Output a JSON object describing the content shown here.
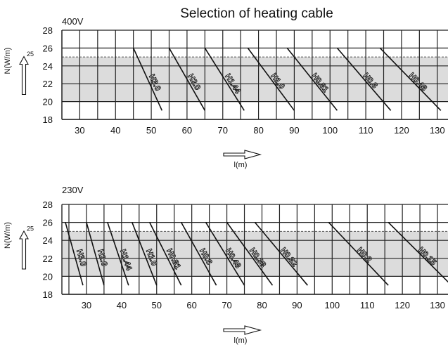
{
  "title": "Selection of heating cable",
  "chart_data": [
    {
      "type": "line",
      "voltage": "400V",
      "xlabel": "l(m)",
      "ylabel": "N(W/m)",
      "xlim": [
        25,
        133
      ],
      "ylim": [
        18,
        28
      ],
      "xticks": [
        30,
        40,
        50,
        60,
        70,
        80,
        90,
        100,
        110,
        120,
        130
      ],
      "yticks": [
        18,
        20,
        22,
        24,
        26,
        28
      ],
      "reference_line": {
        "y": 25,
        "label": "25"
      },
      "shaded_band": [
        20,
        25
      ],
      "series": [
        {
          "name": "H3.0",
          "points": [
            [
              45,
              26
            ],
            [
              53,
              19
            ]
          ]
        },
        {
          "name": "H2.0",
          "points": [
            [
              55,
              26
            ],
            [
              65,
              19
            ]
          ]
        },
        {
          "name": "H1.44",
          "points": [
            [
              65,
              26
            ],
            [
              76,
              19
            ]
          ]
        },
        {
          "name": "H1.0",
          "points": [
            [
              77,
              26
            ],
            [
              90,
              19
            ]
          ]
        },
        {
          "name": "H0.81",
          "points": [
            [
              88,
              26
            ],
            [
              102,
              19
            ]
          ]
        },
        {
          "name": "H0.6",
          "points": [
            [
              102,
              26
            ],
            [
              117,
              19
            ]
          ]
        },
        {
          "name": "H0.48",
          "points": [
            [
              114,
              26
            ],
            [
              131,
              19
            ]
          ]
        }
      ]
    },
    {
      "type": "line",
      "voltage": "230V",
      "xlabel": "l(m)",
      "ylabel": "N(W/m)",
      "xlim": [
        23,
        133
      ],
      "ylim": [
        18,
        28
      ],
      "xticks": [
        30,
        40,
        50,
        60,
        70,
        80,
        90,
        100,
        110,
        120,
        130
      ],
      "yticks": [
        18,
        20,
        22,
        24,
        26,
        28
      ],
      "reference_line": {
        "y": 25,
        "label": "25"
      },
      "shaded_band": [
        20,
        25
      ],
      "series": [
        {
          "name": "H3.0",
          "points": [
            [
              24,
              26
            ],
            [
              29,
              19
            ]
          ]
        },
        {
          "name": "H2.0",
          "points": [
            [
              30,
              26
            ],
            [
              35,
              19
            ]
          ]
        },
        {
          "name": "H1.44",
          "points": [
            [
              36,
              26
            ],
            [
              42,
              19
            ]
          ]
        },
        {
          "name": "H1.0",
          "points": [
            [
              43,
              26
            ],
            [
              50,
              19
            ]
          ]
        },
        {
          "name": "H0.81",
          "points": [
            [
              48,
              26
            ],
            [
              57,
              19
            ]
          ]
        },
        {
          "name": "H0.6",
          "points": [
            [
              57,
              26
            ],
            [
              67,
              19
            ]
          ]
        },
        {
          "name": "H0.48",
          "points": [
            [
              64,
              26
            ],
            [
              75,
              19
            ]
          ]
        },
        {
          "name": "H0.38",
          "points": [
            [
              70,
              26
            ],
            [
              83,
              19
            ]
          ]
        },
        {
          "name": "H0.32",
          "points": [
            [
              78,
              26
            ],
            [
              93,
              19
            ]
          ]
        },
        {
          "name": "H0.2",
          "points": [
            [
              99,
              26
            ],
            [
              116,
              19
            ]
          ]
        },
        {
          "name": "H0.15",
          "points": [
            [
              116,
              26
            ],
            [
              134,
              19
            ]
          ]
        }
      ]
    }
  ]
}
